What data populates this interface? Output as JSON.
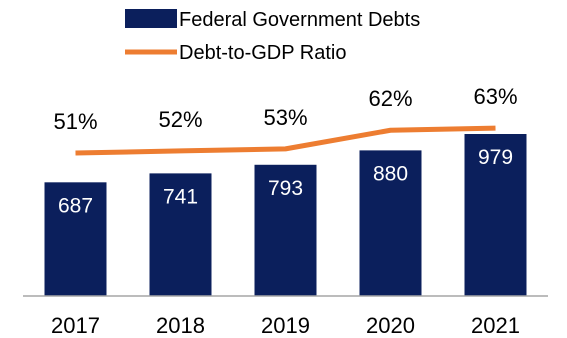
{
  "chart_data": {
    "type": "bar",
    "categories": [
      "2017",
      "2018",
      "2019",
      "2020",
      "2021"
    ],
    "series": [
      {
        "name": "Federal Government Debts",
        "type": "bar",
        "values": [
          687,
          741,
          793,
          880,
          979
        ],
        "color": "#0b1f5c"
      },
      {
        "name": "Debt-to-GDP Ratio",
        "type": "line",
        "values": [
          51,
          52,
          53,
          62,
          63
        ],
        "color": "#ed7d31"
      }
    ],
    "bar_labels": [
      "687",
      "741",
      "793",
      "880",
      "979"
    ],
    "line_labels": [
      "51%",
      "52%",
      "53%",
      "62%",
      "63%"
    ],
    "title": "",
    "xlabel": "",
    "ylabel": "",
    "legend_position": "top-center",
    "grid": false
  }
}
